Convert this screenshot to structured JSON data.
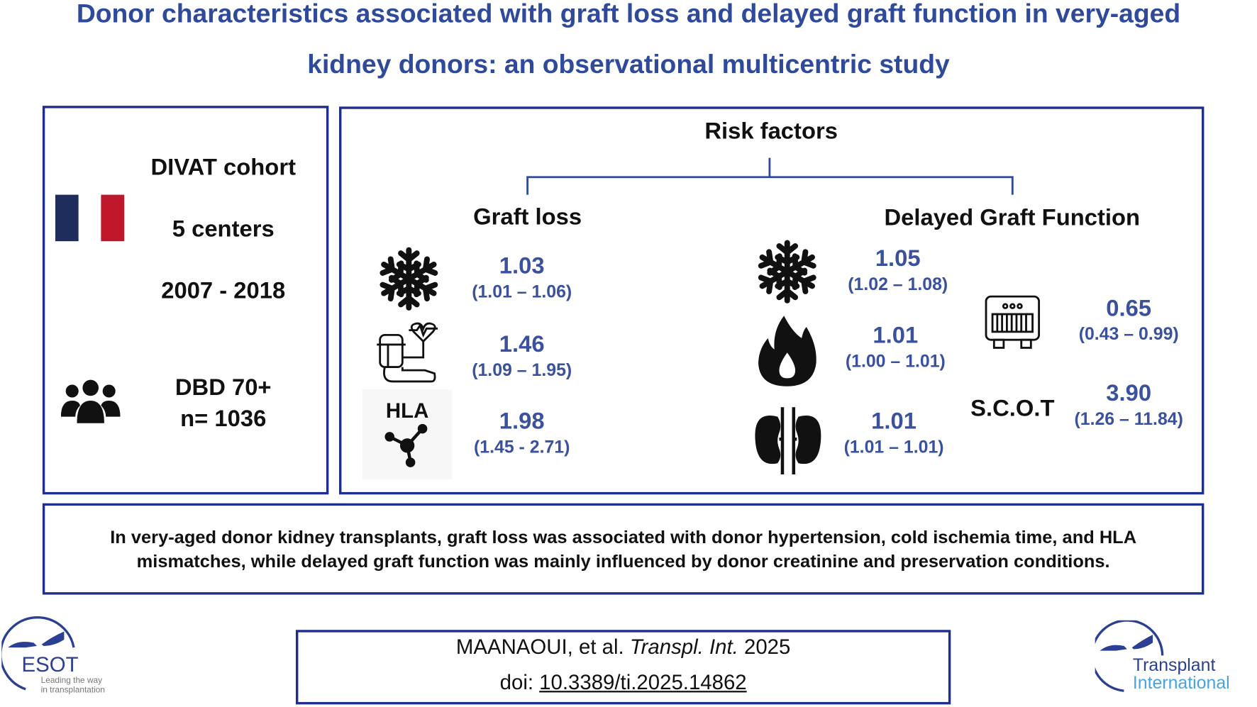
{
  "title": {
    "line1": "Donor characteristics associated with graft loss and delayed graft function in very-aged",
    "line2": "kidney donors: an observational multicentric study"
  },
  "cohort": {
    "name": "DIVAT cohort",
    "centers": "5 centers",
    "period": "2007 - 2018",
    "population": "DBD 70+",
    "n": "n= 1036",
    "flag_colors": [
      "#1f2d5c",
      "#ffffff",
      "#c0182b"
    ]
  },
  "risk": {
    "heading": "Risk factors",
    "graft_loss": {
      "heading": "Graft loss",
      "items": [
        {
          "icon": "snowflake-icon",
          "value": "1.03",
          "ci": "(1.01 – 1.06)"
        },
        {
          "icon": "hypertension-icon",
          "value": "1.46",
          "ci": "(1.09 – 1.95)"
        },
        {
          "icon": "hla-molecule-icon",
          "icon_label": "HLA",
          "value": "1.98",
          "ci": "(1.45 - 2.71)"
        }
      ]
    },
    "dgf": {
      "heading": "Delayed Graft Function",
      "items": [
        {
          "icon": "snowflake-icon",
          "value": "1.05",
          "ci": "(1.02 – 1.08)"
        },
        {
          "icon": "flame-drop-icon",
          "value": "1.01",
          "ci": "(1.00 – 1.01)"
        },
        {
          "icon": "kidneys-icon",
          "value": "1.01",
          "ci": "(1.01 – 1.01)"
        },
        {
          "icon": "perfusion-machine-icon",
          "value": "0.65",
          "ci": "(0.43 – 0.99)"
        },
        {
          "icon_label": "S.C.O.T",
          "value": "3.90",
          "ci": "(1.26 – 11.84)"
        }
      ]
    }
  },
  "summary": {
    "line1": "In very-aged donor kidney transplants, graft loss was associated with donor hypertension, cold ischemia time, and HLA",
    "line2": "mismatches, while delayed graft function was mainly influenced by donor creatinine and preservation conditions."
  },
  "citation": {
    "authors": "MAANAOUI, et al.",
    "journal": "Transpl. Int.",
    "year": "2025",
    "doi_label": "doi:",
    "doi": "10.3389/ti.2025.14862"
  },
  "logos": {
    "esot": {
      "name": "ESOT",
      "tagline1": "Leading the way",
      "tagline2": "in transplantation"
    },
    "ti": {
      "line1": "Transplant",
      "line2": "International"
    }
  },
  "colors": {
    "title": "#2f4a9b",
    "border": "#1f2d8c",
    "values": "#3a519e"
  }
}
